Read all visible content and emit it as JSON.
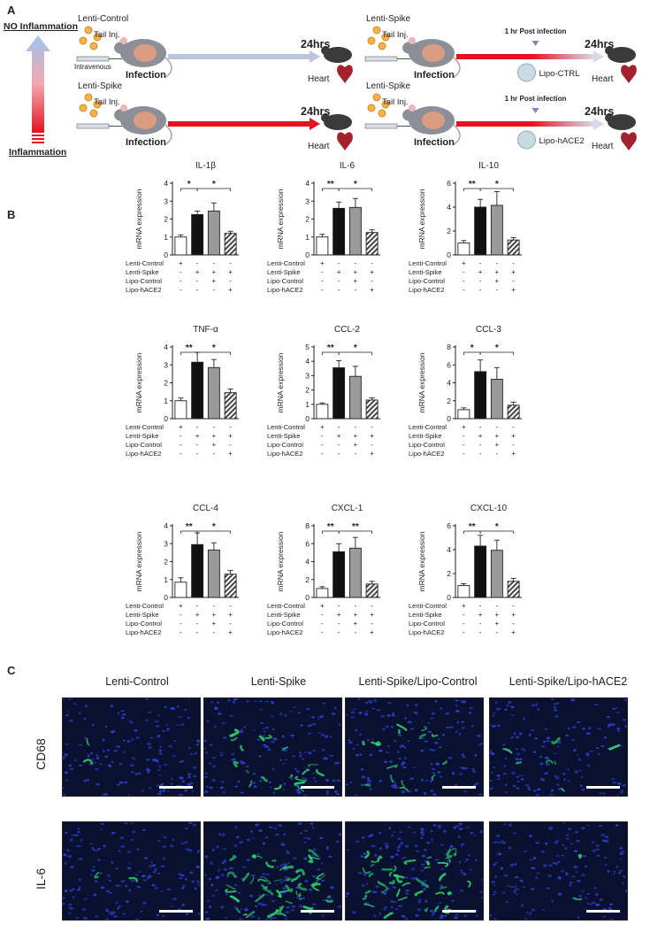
{
  "panels": {
    "a": "A",
    "b": "B",
    "c": "C"
  },
  "schematic": {
    "no_inflammation": "NO Inflammation",
    "inflammation": "Inflammation",
    "rows": [
      {
        "group": "Lenti-Control",
        "inj": "Tail Inj.",
        "route": "Intravenous",
        "infection": "Infection",
        "time": "24hrs",
        "heart": "Heart"
      },
      {
        "group": "Lenti-Spike",
        "inj": "Tail Inj.",
        "route": "",
        "infection": "Infection",
        "time": "24hrs",
        "heart": "Heart"
      },
      {
        "group": "Lenti-Spike",
        "inj": "Tail Inj.",
        "route": "",
        "infection": "Infection",
        "time": "24hrs",
        "heart": "Heart",
        "post": "1 hr Post infection",
        "lipo": "Lipo-CTRL"
      },
      {
        "group": "Lenti-Spike",
        "inj": "Tail Inj.",
        "route": "",
        "infection": "Infection",
        "time": "24hrs",
        "heart": "Heart",
        "post": "1 hr Post infection",
        "lipo": "Lipo-hACE2"
      }
    ]
  },
  "condition_rows": [
    "Lenti-Control",
    "Lenti-Spike",
    "Lipo-Control",
    "Lipo-hACE2"
  ],
  "condition_marks": [
    [
      "+",
      "-",
      "-",
      "-"
    ],
    [
      "-",
      "+",
      "+",
      "+"
    ],
    [
      "-",
      "-",
      "+",
      "-"
    ],
    [
      "-",
      "-",
      "-",
      "+"
    ]
  ],
  "chart_data": [
    {
      "type": "bar",
      "title": "IL-1β",
      "ylabel": "mRNA expression",
      "ylim": [
        0,
        4
      ],
      "yticks": [
        0,
        1,
        2,
        3,
        4
      ],
      "values": [
        1.0,
        2.25,
        2.45,
        1.2
      ],
      "errors": [
        0.12,
        0.2,
        0.45,
        0.12
      ],
      "sig": [
        {
          "from": 0,
          "to": 1,
          "label": "*"
        },
        {
          "from": 1,
          "to": 3,
          "label": "*"
        }
      ]
    },
    {
      "type": "bar",
      "title": "IL-6",
      "ylabel": "mRNA expression",
      "ylim": [
        0,
        4
      ],
      "yticks": [
        0,
        1,
        2,
        3,
        4
      ],
      "values": [
        1.0,
        2.6,
        2.65,
        1.25
      ],
      "errors": [
        0.15,
        0.35,
        0.5,
        0.15
      ],
      "sig": [
        {
          "from": 0,
          "to": 1,
          "label": "**"
        },
        {
          "from": 1,
          "to": 3,
          "label": "*"
        }
      ]
    },
    {
      "type": "bar",
      "title": "IL-10",
      "ylabel": "mRNA expression",
      "ylim": [
        0,
        6
      ],
      "yticks": [
        0,
        2,
        4,
        6
      ],
      "values": [
        1.0,
        4.0,
        4.15,
        1.25
      ],
      "errors": [
        0.2,
        0.65,
        1.15,
        0.2
      ],
      "sig": [
        {
          "from": 0,
          "to": 1,
          "label": "**"
        },
        {
          "from": 1,
          "to": 3,
          "label": "*"
        }
      ]
    },
    {
      "type": "bar",
      "title": "TNF-α",
      "ylabel": "mRNA expression",
      "ylim": [
        0,
        4
      ],
      "yticks": [
        0,
        1,
        2,
        3,
        4
      ],
      "values": [
        1.0,
        3.15,
        2.85,
        1.45
      ],
      "errors": [
        0.15,
        0.55,
        0.45,
        0.2
      ],
      "sig": [
        {
          "from": 0,
          "to": 1,
          "label": "**"
        },
        {
          "from": 1,
          "to": 3,
          "label": "*"
        }
      ]
    },
    {
      "type": "bar",
      "title": "CCL-2",
      "ylabel": "mRNA expression",
      "ylim": [
        0,
        5
      ],
      "yticks": [
        0,
        1,
        2,
        3,
        4,
        5
      ],
      "values": [
        1.0,
        3.55,
        2.95,
        1.3
      ],
      "errors": [
        0.1,
        0.5,
        0.7,
        0.15
      ],
      "sig": [
        {
          "from": 0,
          "to": 1,
          "label": "**"
        },
        {
          "from": 1,
          "to": 3,
          "label": "*"
        }
      ]
    },
    {
      "type": "bar",
      "title": "CCL-3",
      "ylabel": "mRNA expression",
      "ylim": [
        0,
        8
      ],
      "yticks": [
        0,
        2,
        4,
        6,
        8
      ],
      "values": [
        1.0,
        5.25,
        4.4,
        1.5
      ],
      "errors": [
        0.2,
        1.3,
        1.3,
        0.35
      ],
      "sig": [
        {
          "from": 0,
          "to": 1,
          "label": "*"
        },
        {
          "from": 1,
          "to": 3,
          "label": "*"
        }
      ]
    },
    {
      "type": "bar",
      "title": "CCL-4",
      "ylabel": "mRNA expression",
      "ylim": [
        0,
        4
      ],
      "yticks": [
        0,
        1,
        2,
        3,
        4
      ],
      "values": [
        0.85,
        2.95,
        2.65,
        1.3
      ],
      "errors": [
        0.25,
        0.65,
        0.4,
        0.2
      ],
      "sig": [
        {
          "from": 0,
          "to": 1,
          "label": "**"
        },
        {
          "from": 1,
          "to": 3,
          "label": "*"
        }
      ]
    },
    {
      "type": "bar",
      "title": "CXCL-1",
      "ylabel": "mRNA expression",
      "ylim": [
        0,
        8
      ],
      "yticks": [
        0,
        2,
        4,
        6,
        8
      ],
      "values": [
        1.0,
        5.1,
        5.5,
        1.5
      ],
      "errors": [
        0.2,
        0.9,
        1.2,
        0.3
      ],
      "sig": [
        {
          "from": 0,
          "to": 1,
          "label": "**"
        },
        {
          "from": 1,
          "to": 3,
          "label": "**"
        }
      ]
    },
    {
      "type": "bar",
      "title": "CXCL-10",
      "ylabel": "mRNA expression",
      "ylim": [
        0,
        6
      ],
      "yticks": [
        0,
        2,
        4,
        6
      ],
      "values": [
        1.0,
        4.3,
        3.95,
        1.35
      ],
      "errors": [
        0.15,
        0.9,
        0.85,
        0.25
      ],
      "sig": [
        {
          "from": 0,
          "to": 1,
          "label": "**"
        },
        {
          "from": 1,
          "to": 3,
          "label": "*"
        }
      ]
    }
  ],
  "micro": {
    "columns": [
      "Lenti-Control",
      "Lenti-Spike",
      "Lenti-Spike/Lipo-Control",
      "Lenti-Spike/Lipo-hACE2"
    ],
    "rows": [
      "CD68",
      "IL-6"
    ],
    "green_density": [
      [
        0.05,
        0.3,
        0.25,
        0.12
      ],
      [
        0.03,
        0.8,
        0.7,
        0.03
      ]
    ]
  },
  "colors": {
    "bar_fills": [
      "#ffffff",
      "#111111",
      "#9a9a9a",
      "#555555"
    ],
    "cell_blue": "#2b3fd0",
    "cell_green": "#2fe070"
  }
}
